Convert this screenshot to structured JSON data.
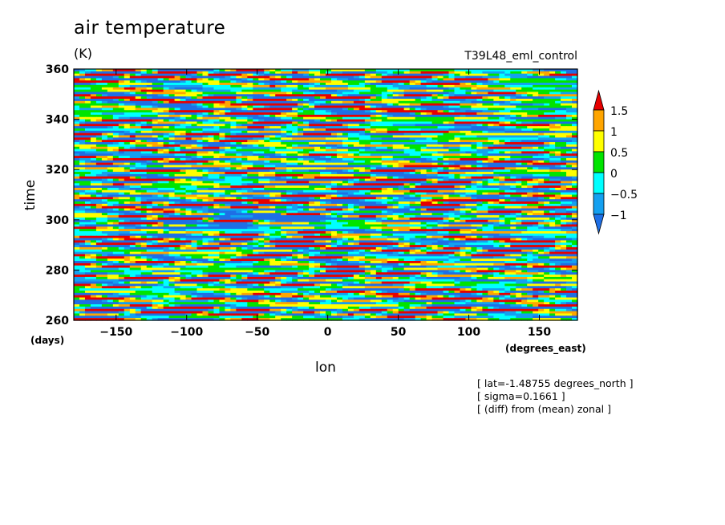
{
  "chart_data": {
    "type": "heatmap",
    "title": "air temperature",
    "units": "(K)",
    "subtitle": "T39L48_eml_control",
    "xlabel": "lon",
    "ylabel": "time",
    "x_unit_label": "(degrees_east)",
    "y_unit_label": "(days)",
    "xlim": [
      -180,
      177
    ],
    "ylim": [
      260,
      360
    ],
    "x_ticks": [
      -150,
      -100,
      -50,
      0,
      50,
      100,
      150
    ],
    "y_ticks": [
      260,
      280,
      300,
      320,
      340,
      360
    ],
    "x_tick_labels": [
      "−150",
      "−100",
      "−50",
      "0",
      "50",
      "100",
      "150"
    ],
    "y_tick_labels": [
      "260",
      "280",
      "300",
      "320",
      "340",
      "360"
    ],
    "colorbar": {
      "levels": [
        -1,
        -0.5,
        0,
        0.5,
        1,
        1.5
      ],
      "labels": [
        "−1",
        "−0.5",
        "0",
        "0.5",
        "1",
        "1.5"
      ],
      "colors": [
        "#1e6fe6",
        "#14a0f0",
        "#00ffff",
        "#00e400",
        "#ffff00",
        "#ffa500",
        "#e60000"
      ],
      "extend": "both"
    },
    "annotations": [
      "[ lat=-1.48755 degrees_north ]",
      "[ sigma=0.1661 ]",
      "[ (diff) from (mean) zonal ]"
    ],
    "features": [
      {
        "kind": "positive-anomaly-streak",
        "from": [
          -30,
          302
        ],
        "to": [
          95,
          308
        ]
      },
      {
        "kind": "negative-anomaly-band",
        "from": [
          -110,
          298
        ],
        "to": [
          60,
          306
        ]
      }
    ]
  }
}
